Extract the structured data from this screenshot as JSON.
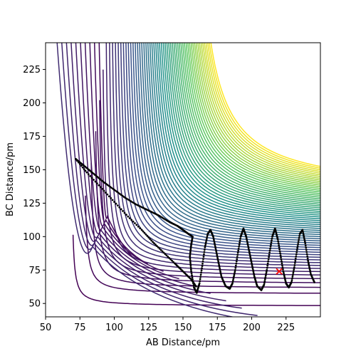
{
  "chart_data": {
    "type": "contour",
    "title": "",
    "xlabel": "AB Distance/pm",
    "ylabel": "BC Distance/pm",
    "xlim": [
      50,
      250
    ],
    "ylim": [
      40,
      245
    ],
    "xticks": [
      50,
      75,
      100,
      125,
      150,
      175,
      200,
      225
    ],
    "yticks": [
      50,
      75,
      100,
      125,
      150,
      175,
      200,
      225
    ],
    "grid": false,
    "colormap": "viridis",
    "colormap_colors": [
      "#440154",
      "#3b528b",
      "#21918c",
      "#5ec962",
      "#fde725"
    ],
    "contour_levels": 60,
    "trajectory": {
      "color": "#000000",
      "marker": "dots",
      "points": [
        [
          72,
          158
        ],
        [
          78,
          153
        ],
        [
          85,
          147
        ],
        [
          92,
          141
        ],
        [
          100,
          135
        ],
        [
          108,
          129
        ],
        [
          116,
          124
        ],
        [
          124,
          120
        ],
        [
          132,
          116
        ],
        [
          140,
          111
        ],
        [
          146,
          108
        ],
        [
          150,
          105
        ],
        [
          154,
          102
        ],
        [
          157,
          100
        ],
        [
          156,
          94
        ],
        [
          155,
          85
        ],
        [
          156,
          74
        ],
        [
          158,
          62
        ],
        [
          160,
          58
        ],
        [
          162,
          65
        ],
        [
          164,
          78
        ],
        [
          166,
          92
        ],
        [
          168,
          102
        ],
        [
          170,
          105
        ],
        [
          172,
          100
        ],
        [
          174,
          90
        ],
        [
          176,
          80
        ],
        [
          178,
          70
        ],
        [
          181,
          63
        ],
        [
          184,
          61
        ],
        [
          186,
          65
        ],
        [
          188,
          75
        ],
        [
          190,
          88
        ],
        [
          192,
          100
        ],
        [
          194,
          106
        ],
        [
          196,
          100
        ],
        [
          198,
          90
        ],
        [
          200,
          80
        ],
        [
          202,
          70
        ],
        [
          204,
          63
        ],
        [
          207,
          60
        ],
        [
          209,
          64
        ],
        [
          211,
          75
        ],
        [
          213,
          88
        ],
        [
          215,
          100
        ],
        [
          217,
          106
        ],
        [
          219,
          98
        ],
        [
          221,
          86
        ],
        [
          223,
          74
        ],
        [
          225,
          65
        ],
        [
          227,
          62
        ],
        [
          229,
          66
        ],
        [
          231,
          77
        ],
        [
          233,
          90
        ],
        [
          235,
          102
        ],
        [
          237,
          105
        ],
        [
          239,
          95
        ],
        [
          241,
          82
        ],
        [
          243,
          72
        ],
        [
          246,
          65
        ]
      ]
    },
    "return_path": {
      "color": "#000000",
      "points": [
        [
          72,
          158
        ],
        [
          80,
          148
        ],
        [
          90,
          137
        ],
        [
          100,
          126
        ],
        [
          110,
          115
        ],
        [
          120,
          105
        ],
        [
          128,
          96
        ],
        [
          136,
          88
        ],
        [
          144,
          80
        ],
        [
          150,
          74
        ],
        [
          156,
          68
        ],
        [
          160,
          62
        ]
      ]
    },
    "marker": {
      "x": 220,
      "y": 74,
      "symbol": "x",
      "color": "#ff0000"
    }
  }
}
